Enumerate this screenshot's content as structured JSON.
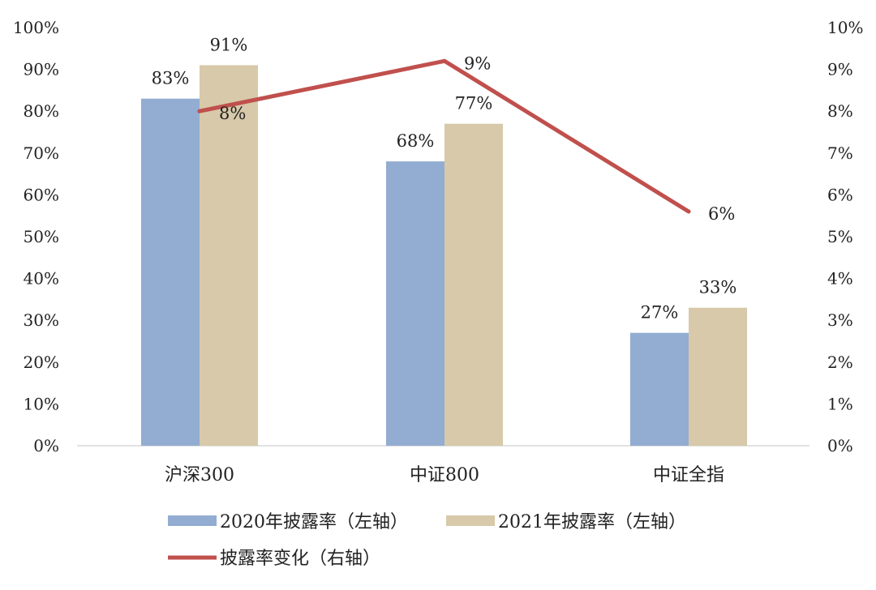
{
  "chart_data": {
    "type": "bar",
    "categories": [
      "沪深300",
      "中证800",
      "中证全指"
    ],
    "series": [
      {
        "name": "2020年披露率（左轴）",
        "kind": "bar",
        "axis": "left",
        "values": [
          83,
          68,
          27
        ],
        "labels": [
          "83%",
          "68%",
          "27%"
        ],
        "color": "#93acd1"
      },
      {
        "name": "2021年披露率（左轴）",
        "kind": "bar",
        "axis": "left",
        "values": [
          91,
          77,
          33
        ],
        "labels": [
          "91%",
          "77%",
          "33%"
        ],
        "color": "#d7c9a9"
      },
      {
        "name": "披露率变化（右轴）",
        "kind": "line",
        "axis": "right",
        "values": [
          8,
          9.2,
          5.6
        ],
        "labels": [
          "8%",
          "9%",
          "6%"
        ],
        "color": "#c0504d"
      }
    ],
    "y_left": {
      "lim": [
        0,
        100
      ],
      "ticks": [
        "0%",
        "10%",
        "20%",
        "30%",
        "40%",
        "50%",
        "60%",
        "70%",
        "80%",
        "90%",
        "100%"
      ]
    },
    "y_right": {
      "lim": [
        0,
        10
      ],
      "ticks": [
        "0%",
        "1%",
        "2%",
        "3%",
        "4%",
        "5%",
        "6%",
        "7%",
        "8%",
        "9%",
        "10%"
      ]
    },
    "grid": false,
    "legend_position": "bottom"
  }
}
